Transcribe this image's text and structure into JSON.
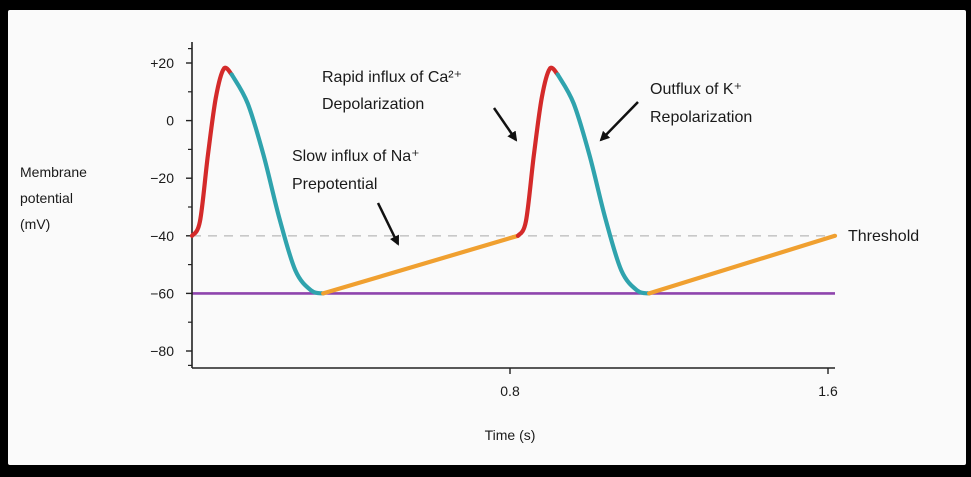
{
  "chart_data": {
    "type": "line",
    "title": "",
    "xlabel": "Time (s)",
    "ylabel_lines": [
      "Membrane",
      "potential",
      "(mV)"
    ],
    "xlim": [
      0,
      1.6
    ],
    "ylim": [
      -85,
      25
    ],
    "xticks": [
      {
        "value": 0.8,
        "label": "0.8"
      },
      {
        "value": 1.6,
        "label": "1.6"
      }
    ],
    "yticks": [
      {
        "value": 20,
        "label": "+20"
      },
      {
        "value": 0,
        "label": "0"
      },
      {
        "value": -20,
        "label": "−20"
      },
      {
        "value": -40,
        "label": "−40"
      },
      {
        "value": -60,
        "label": "−60"
      },
      {
        "value": -80,
        "label": "−80"
      }
    ],
    "reference_lines": [
      {
        "name": "Threshold",
        "y": -40,
        "style": "dashed",
        "color": "#c8c8c8"
      },
      {
        "name": "",
        "y": -60,
        "style": "solid",
        "color": "#8e44ad"
      }
    ],
    "series": [
      {
        "phase": "depolarization",
        "color": "#d42a2a",
        "x": [
          0.0,
          0.02,
          0.04,
          0.06,
          0.08,
          0.1
        ],
        "y": [
          -40,
          -35,
          -12,
          8,
          18,
          16
        ]
      },
      {
        "phase": "repolarization",
        "color": "#2fa3ad",
        "x": [
          0.1,
          0.14,
          0.18,
          0.22,
          0.26,
          0.3,
          0.33
        ],
        "y": [
          16,
          6,
          -12,
          -34,
          -52,
          -59,
          -60
        ]
      },
      {
        "phase": "prepotential",
        "color": "#f0a030",
        "x": [
          0.33,
          0.82
        ],
        "y": [
          -60,
          -40
        ]
      },
      {
        "phase": "depolarization",
        "color": "#d42a2a",
        "x": [
          0.82,
          0.84,
          0.86,
          0.88,
          0.9,
          0.92
        ],
        "y": [
          -40,
          -35,
          -12,
          8,
          18,
          16
        ]
      },
      {
        "phase": "repolarization",
        "color": "#2fa3ad",
        "x": [
          0.92,
          0.96,
          1.0,
          1.04,
          1.08,
          1.12,
          1.15
        ],
        "y": [
          16,
          6,
          -12,
          -34,
          -52,
          -59,
          -60
        ]
      },
      {
        "phase": "prepotential",
        "color": "#f0a030",
        "x": [
          1.15,
          1.64
        ],
        "y": [
          -60,
          -40
        ]
      }
    ],
    "annotations": [
      {
        "lines": [
          "Slow influx of Na⁺",
          "Prepotential"
        ]
      },
      {
        "lines": [
          "Rapid influx of Ca²⁺",
          "Depolarization"
        ]
      },
      {
        "lines": [
          "Outflux of K⁺",
          "Repolarization"
        ]
      }
    ],
    "threshold_label": "Threshold"
  }
}
